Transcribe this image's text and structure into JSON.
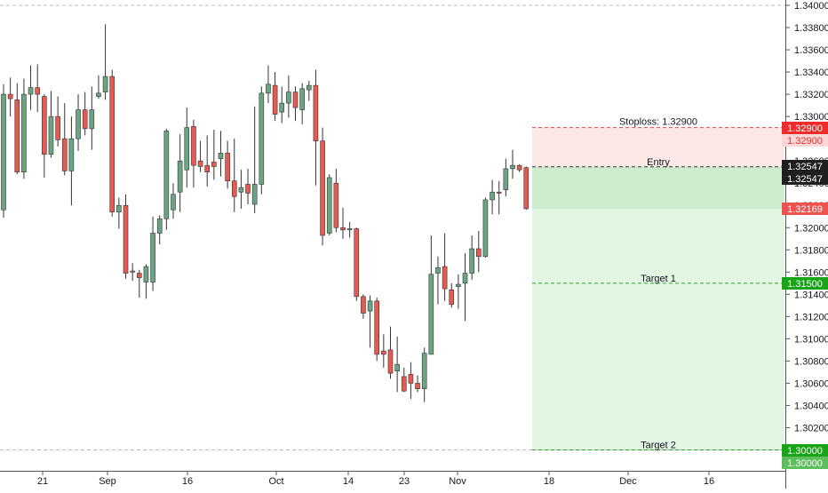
{
  "chart_data": {
    "type": "candlestick",
    "x_ticks": [
      "21",
      "Sep",
      "16",
      "Oct",
      "14",
      "23",
      "Nov",
      "18",
      "Dec",
      "16"
    ],
    "y_ticks": [
      "1.34000",
      "1.33800",
      "1.33600",
      "1.33400",
      "1.33200",
      "1.33000",
      "1.32800",
      "1.32600",
      "1.32400",
      "1.32200",
      "1.32000",
      "1.31800",
      "1.31600",
      "1.31400",
      "1.31200",
      "1.31000",
      "1.30800",
      "1.30600",
      "1.30400",
      "1.30200",
      "1.30000"
    ],
    "ylim": [
      1.2995,
      1.3401
    ],
    "grid": false,
    "candles": [
      {
        "o": 1.3216,
        "h": 1.3329,
        "l": 1.3209,
        "c": 1.332
      },
      {
        "o": 1.332,
        "h": 1.3335,
        "l": 1.33,
        "c": 1.3316
      },
      {
        "o": 1.3315,
        "h": 1.333,
        "l": 1.3248,
        "c": 1.325
      },
      {
        "o": 1.325,
        "h": 1.3334,
        "l": 1.3244,
        "c": 1.332
      },
      {
        "o": 1.332,
        "h": 1.3346,
        "l": 1.3306,
        "c": 1.3326
      },
      {
        "o": 1.3326,
        "h": 1.3347,
        "l": 1.3304,
        "c": 1.332
      },
      {
        "o": 1.3318,
        "h": 1.332,
        "l": 1.3245,
        "c": 1.3266
      },
      {
        "o": 1.3266,
        "h": 1.3323,
        "l": 1.3263,
        "c": 1.33
      },
      {
        "o": 1.33,
        "h": 1.3318,
        "l": 1.3273,
        "c": 1.3279
      },
      {
        "o": 1.328,
        "h": 1.3312,
        "l": 1.3247,
        "c": 1.3251
      },
      {
        "o": 1.3251,
        "h": 1.33,
        "l": 1.322,
        "c": 1.328
      },
      {
        "o": 1.328,
        "h": 1.332,
        "l": 1.3269,
        "c": 1.3306
      },
      {
        "o": 1.3306,
        "h": 1.3322,
        "l": 1.3283,
        "c": 1.3289
      },
      {
        "o": 1.3289,
        "h": 1.3327,
        "l": 1.327,
        "c": 1.3306
      },
      {
        "o": 1.3318,
        "h": 1.3337,
        "l": 1.3316,
        "c": 1.3321
      },
      {
        "o": 1.3322,
        "h": 1.3383,
        "l": 1.3315,
        "c": 1.3336
      },
      {
        "o": 1.3336,
        "h": 1.3342,
        "l": 1.321,
        "c": 1.3214
      },
      {
        "o": 1.3214,
        "h": 1.3227,
        "l": 1.3199,
        "c": 1.322
      },
      {
        "o": 1.322,
        "h": 1.323,
        "l": 1.3154,
        "c": 1.3159
      },
      {
        "o": 1.316,
        "h": 1.3168,
        "l": 1.3152,
        "c": 1.3161
      },
      {
        "o": 1.3159,
        "h": 1.3162,
        "l": 1.3137,
        "c": 1.3155
      },
      {
        "o": 1.3151,
        "h": 1.3167,
        "l": 1.3136,
        "c": 1.3165
      },
      {
        "o": 1.3151,
        "h": 1.321,
        "l": 1.3143,
        "c": 1.3195
      },
      {
        "o": 1.3195,
        "h": 1.3211,
        "l": 1.3185,
        "c": 1.3208
      },
      {
        "o": 1.3208,
        "h": 1.3289,
        "l": 1.3198,
        "c": 1.3287
      },
      {
        "o": 1.3216,
        "h": 1.324,
        "l": 1.3208,
        "c": 1.323
      },
      {
        "o": 1.3232,
        "h": 1.3284,
        "l": 1.3214,
        "c": 1.326
      },
      {
        "o": 1.3252,
        "h": 1.3308,
        "l": 1.3236,
        "c": 1.329
      },
      {
        "o": 1.3291,
        "h": 1.3297,
        "l": 1.3236,
        "c": 1.3256
      },
      {
        "o": 1.326,
        "h": 1.3278,
        "l": 1.325,
        "c": 1.3255
      },
      {
        "o": 1.3256,
        "h": 1.3283,
        "l": 1.3237,
        "c": 1.325
      },
      {
        "o": 1.3259,
        "h": 1.3288,
        "l": 1.3243,
        "c": 1.3255
      },
      {
        "o": 1.3262,
        "h": 1.3287,
        "l": 1.3246,
        "c": 1.3267
      },
      {
        "o": 1.3267,
        "h": 1.3278,
        "l": 1.3235,
        "c": 1.3242
      },
      {
        "o": 1.3242,
        "h": 1.328,
        "l": 1.3214,
        "c": 1.3228
      },
      {
        "o": 1.3232,
        "h": 1.3252,
        "l": 1.3217,
        "c": 1.3236
      },
      {
        "o": 1.3239,
        "h": 1.3253,
        "l": 1.3221,
        "c": 1.3231
      },
      {
        "o": 1.3221,
        "h": 1.3309,
        "l": 1.3213,
        "c": 1.3239
      },
      {
        "o": 1.3239,
        "h": 1.3327,
        "l": 1.323,
        "c": 1.3321
      },
      {
        "o": 1.3321,
        "h": 1.3346,
        "l": 1.3312,
        "c": 1.3329
      },
      {
        "o": 1.3328,
        "h": 1.334,
        "l": 1.3296,
        "c": 1.3302
      },
      {
        "o": 1.3304,
        "h": 1.3327,
        "l": 1.3294,
        "c": 1.3312
      },
      {
        "o": 1.3312,
        "h": 1.3337,
        "l": 1.3299,
        "c": 1.3322
      },
      {
        "o": 1.3322,
        "h": 1.3327,
        "l": 1.3296,
        "c": 1.3308
      },
      {
        "o": 1.3306,
        "h": 1.333,
        "l": 1.3293,
        "c": 1.3325
      },
      {
        "o": 1.3324,
        "h": 1.3332,
        "l": 1.3314,
        "c": 1.3328
      },
      {
        "o": 1.3328,
        "h": 1.3342,
        "l": 1.3238,
        "c": 1.3278
      },
      {
        "o": 1.3278,
        "h": 1.329,
        "l": 1.3184,
        "c": 1.3193
      },
      {
        "o": 1.3195,
        "h": 1.3248,
        "l": 1.3193,
        "c": 1.3245
      },
      {
        "o": 1.324,
        "h": 1.3253,
        "l": 1.3196,
        "c": 1.32
      },
      {
        "o": 1.32,
        "h": 1.3218,
        "l": 1.319,
        "c": 1.3198
      },
      {
        "o": 1.3198,
        "h": 1.3205,
        "l": 1.3191,
        "c": 1.3199
      },
      {
        "o": 1.3199,
        "h": 1.32,
        "l": 1.3134,
        "c": 1.3138
      },
      {
        "o": 1.3138,
        "h": 1.314,
        "l": 1.3118,
        "c": 1.3123
      },
      {
        "o": 1.3125,
        "h": 1.3139,
        "l": 1.3092,
        "c": 1.3134
      },
      {
        "o": 1.3134,
        "h": 1.3137,
        "l": 1.308,
        "c": 1.3086
      },
      {
        "o": 1.3089,
        "h": 1.3104,
        "l": 1.3074,
        "c": 1.3086
      },
      {
        "o": 1.309,
        "h": 1.3111,
        "l": 1.3064,
        "c": 1.3069
      },
      {
        "o": 1.3071,
        "h": 1.3102,
        "l": 1.3052,
        "c": 1.3077
      },
      {
        "o": 1.3066,
        "h": 1.3074,
        "l": 1.3052,
        "c": 1.3053
      },
      {
        "o": 1.3068,
        "h": 1.3079,
        "l": 1.3046,
        "c": 1.306
      },
      {
        "o": 1.306,
        "h": 1.3067,
        "l": 1.3052,
        "c": 1.3055
      },
      {
        "o": 1.3055,
        "h": 1.3092,
        "l": 1.3043,
        "c": 1.3087
      },
      {
        "o": 1.3086,
        "h": 1.3193,
        "l": 1.3086,
        "c": 1.3158
      },
      {
        "o": 1.3159,
        "h": 1.3174,
        "l": 1.3131,
        "c": 1.3164
      },
      {
        "o": 1.3165,
        "h": 1.3195,
        "l": 1.3134,
        "c": 1.3145
      },
      {
        "o": 1.3144,
        "h": 1.315,
        "l": 1.3128,
        "c": 1.3131
      },
      {
        "o": 1.3147,
        "h": 1.3158,
        "l": 1.3127,
        "c": 1.3149
      },
      {
        "o": 1.315,
        "h": 1.3177,
        "l": 1.3116,
        "c": 1.3159
      },
      {
        "o": 1.3159,
        "h": 1.3193,
        "l": 1.3153,
        "c": 1.3181
      },
      {
        "o": 1.3181,
        "h": 1.3197,
        "l": 1.316,
        "c": 1.3174
      },
      {
        "o": 1.3174,
        "h": 1.3227,
        "l": 1.3173,
        "c": 1.3225
      },
      {
        "o": 1.3225,
        "h": 1.3243,
        "l": 1.3212,
        "c": 1.3232
      },
      {
        "o": 1.3232,
        "h": 1.3242,
        "l": 1.3212,
        "c": 1.3231
      },
      {
        "o": 1.3234,
        "h": 1.3262,
        "l": 1.3228,
        "c": 1.3253
      },
      {
        "o": 1.3253,
        "h": 1.327,
        "l": 1.3244,
        "c": 1.3256
      },
      {
        "o": 1.3256,
        "h": 1.3257,
        "l": 1.325,
        "c": 1.3252
      },
      {
        "o": 1.3254,
        "h": 1.3255,
        "l": 1.3216,
        "c": 1.3217
      }
    ],
    "position": {
      "stoploss": 1.329,
      "entry": 1.32547,
      "current": 1.32169,
      "target1": 1.315,
      "target2": 1.3
    },
    "annotations": {
      "stoploss_text": "Stoploss: 1.32900",
      "entry_text": "Entry",
      "target1_text": "Target 1",
      "target2_text": "Target 2"
    },
    "price_labels": {
      "stoploss_top": "1.32900",
      "stoploss_bottom": "1.32900",
      "entry_top": "1.32547",
      "entry_bottom": "1.32547",
      "current": "1.32169",
      "target1": "1.31500",
      "target2_top": "1.30000",
      "target2_bottom": "1.30000"
    },
    "colors": {
      "up": "#6ba583",
      "down": "#e65a52",
      "stop_zone": "#fde8e8",
      "profit_zone": "#e3f5e3",
      "profit_zone_strong": "#cdeccd",
      "stop_label": "#ef2c2c",
      "entry_label": "#1e1e1e",
      "current_label": "#ef5350",
      "target_label": "#17a417"
    }
  }
}
